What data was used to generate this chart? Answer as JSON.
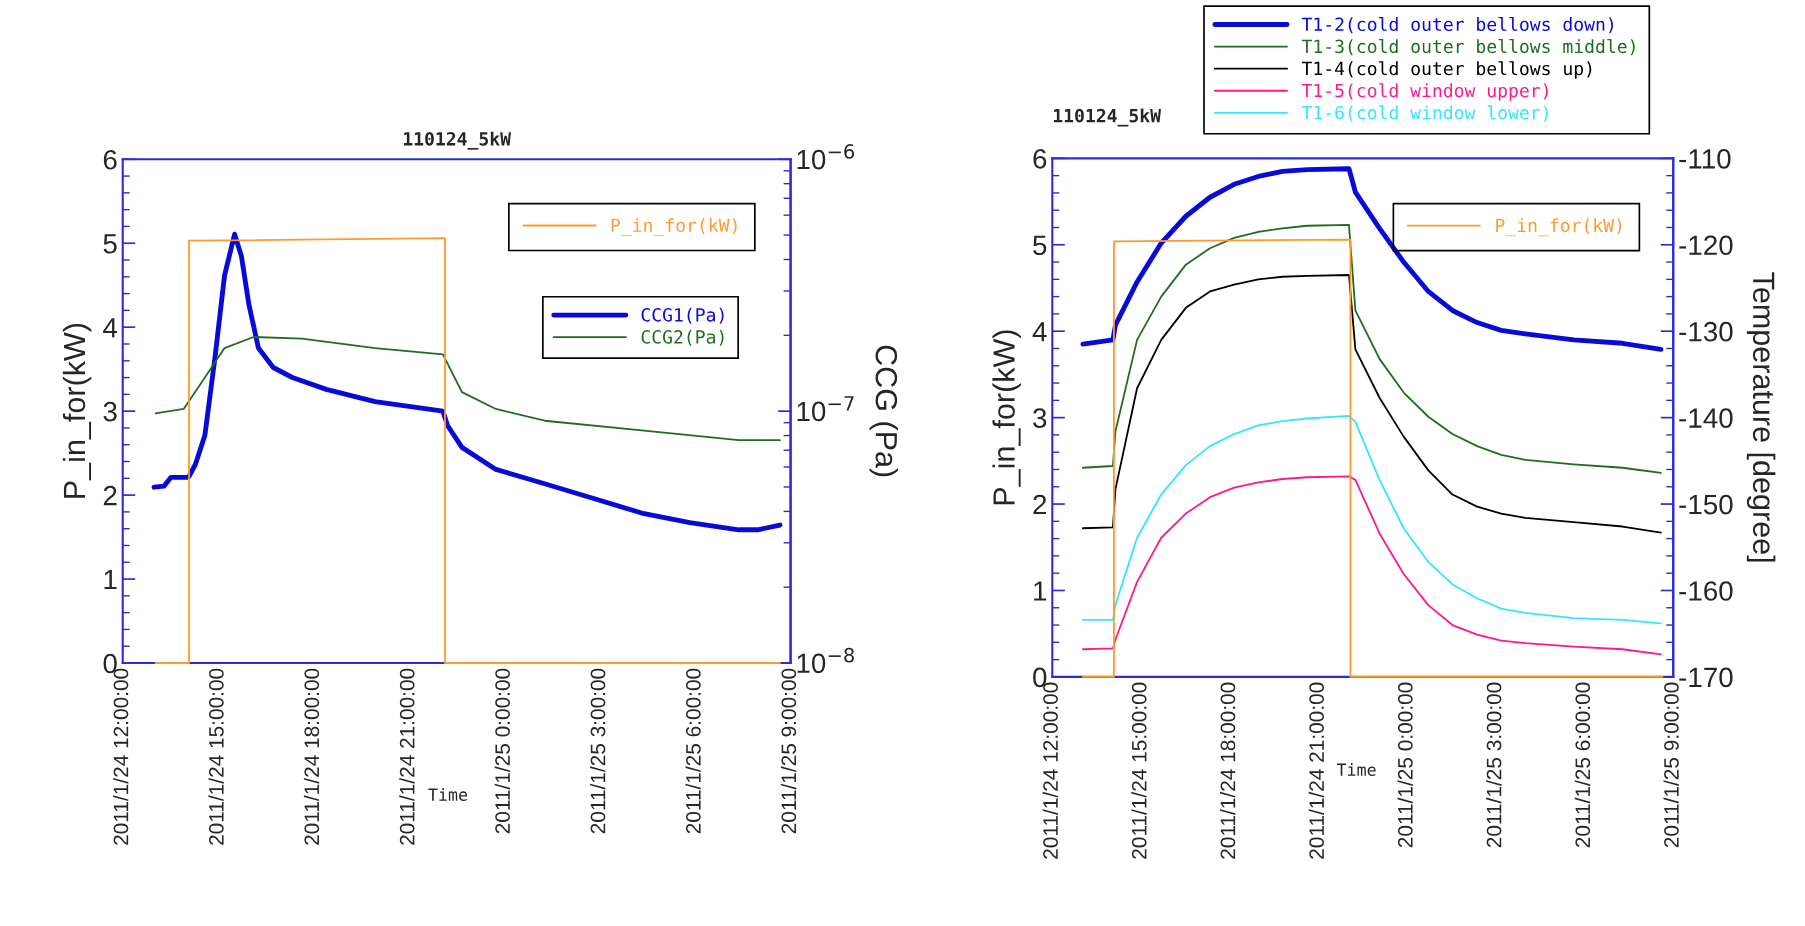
{
  "chart_data": [
    {
      "type": "line",
      "title": "110124_5kW",
      "xlabel": "Time",
      "ylabel": "P_in_for(kW)",
      "y2label": "CCG (Pa)",
      "xlim": [
        "2011-01-24T12:00",
        "2011-01-25T09:00"
      ],
      "xticks": [
        {
          "value": "2011-01-24T12:00",
          "label": "2011/1/24 12:00:00"
        },
        {
          "value": "2011-01-24T15:00",
          "label": "2011/1/24 15:00:00"
        },
        {
          "value": "2011-01-24T18:00",
          "label": "2011/1/24 18:00:00"
        },
        {
          "value": "2011-01-24T21:00",
          "label": "2011/1/24 21:00:00"
        },
        {
          "value": "2011-01-25T00:00",
          "label": "2011/1/25 0:00:00"
        },
        {
          "value": "2011-01-25T03:00",
          "label": "2011/1/25 3:00:00"
        },
        {
          "value": "2011-01-25T06:00",
          "label": "2011/1/25 6:00:00"
        },
        {
          "value": "2011-01-25T09:00",
          "label": "2011/1/25 9:00:00"
        }
      ],
      "ylim": [
        0,
        6
      ],
      "yticks": [
        0,
        1,
        2,
        3,
        4,
        5,
        6
      ],
      "y2lim": [
        1e-08,
        1e-06
      ],
      "y2ticks": [
        {
          "value": 1e-08,
          "label": "10$^{−8}$"
        },
        {
          "value": 1e-07,
          "label": "10$^{−7}$"
        },
        {
          "value": 1e-06,
          "label": "10$^{−6}$"
        }
      ],
      "log": "y2",
      "legend": "top right",
      "series": [
        {
          "name": "P_in_for(kW)",
          "color": "#ff9a2e",
          "x": [
            "2011-01-24T13:02",
            "2011-01-24T14:05",
            "2011-01-24T14:05",
            "2011-01-24T22:08",
            "2011-01-24T22:08",
            "2011-01-25T08:40"
          ],
          "values": [
            0,
            0,
            5.03,
            5.06,
            0,
            0
          ]
        },
        {
          "name": "CCG1(Pa)",
          "color": "#0a0ad8",
          "axis": "y2",
          "x": [
            "2011-01-24T12:59",
            "2011-01-24T13:18",
            "2011-01-24T13:31",
            "2011-01-24T14:04",
            "2011-01-24T14:17",
            "2011-01-24T14:35",
            "2011-01-24T14:54",
            "2011-01-24T15:12",
            "2011-01-24T15:31",
            "2011-01-24T15:44",
            "2011-01-24T15:58",
            "2011-01-24T16:16",
            "2011-01-24T16:44",
            "2011-01-24T17:20",
            "2011-01-24T18:24",
            "2011-01-24T19:56",
            "2011-01-24T22:04",
            "2011-01-24T22:13",
            "2011-01-24T22:40",
            "2011-01-24T23:44",
            "2011-01-25T01:16",
            "2011-01-25T02:47",
            "2011-01-25T04:19",
            "2011-01-25T05:50",
            "2011-01-25T07:22",
            "2011-01-25T07:58",
            "2011-01-25T08:40"
          ],
          "values": [
            4.99e-08,
            5.04e-08,
            5.46e-08,
            5.46e-08,
            6.14e-08,
            8.02e-08,
            1.63e-07,
            3.45e-07,
            5.04e-07,
            4.12e-07,
            2.65e-07,
            1.78e-07,
            1.49e-07,
            1.36e-07,
            1.22e-07,
            1.09e-07,
            1e-07,
            8.75e-08,
            7.18e-08,
            5.87e-08,
            5.15e-08,
            4.51e-08,
            3.94e-08,
            3.61e-08,
            3.38e-08,
            3.38e-08,
            3.53e-08
          ]
        },
        {
          "name": "CCG2(Pa)",
          "color": "#1f6e1f",
          "axis": "y2",
          "x": [
            "2011-01-24T13:02",
            "2011-01-24T13:55",
            "2011-01-24T14:35",
            "2011-01-24T15:12",
            "2011-01-24T16:07",
            "2011-01-24T17:38",
            "2011-01-24T19:56",
            "2011-01-24T22:04",
            "2011-01-24T22:40",
            "2011-01-24T23:44",
            "2011-01-25T01:16",
            "2011-01-25T04:19",
            "2011-01-25T07:22",
            "2011-01-25T08:40"
          ],
          "values": [
            9.8e-08,
            1.02e-07,
            1.36e-07,
            1.78e-07,
            1.97e-07,
            1.94e-07,
            1.78e-07,
            1.68e-07,
            1.19e-07,
            1.02e-07,
            9.16e-08,
            8.38e-08,
            7.67e-08,
            7.67e-08
          ]
        }
      ]
    },
    {
      "type": "line",
      "title": "110124_5kW",
      "xlabel": "Time",
      "ylabel": "P_in_for(kW)",
      "y2label": "Temperature [degree]",
      "xlim": [
        "2011-01-24T12:00",
        "2011-01-25T09:00"
      ],
      "xticks": [
        {
          "value": "2011-01-24T12:00",
          "label": "2011/1/24 12:00:00"
        },
        {
          "value": "2011-01-24T15:00",
          "label": "2011/1/24 15:00:00"
        },
        {
          "value": "2011-01-24T18:00",
          "label": "2011/1/24 18:00:00"
        },
        {
          "value": "2011-01-24T21:00",
          "label": "2011/1/24 21:00:00"
        },
        {
          "value": "2011-01-25T00:00",
          "label": "2011/1/25 0:00:00"
        },
        {
          "value": "2011-01-25T03:00",
          "label": "2011/1/25 3:00:00"
        },
        {
          "value": "2011-01-25T06:00",
          "label": "2011/1/25 6:00:00"
        },
        {
          "value": "2011-01-25T09:00",
          "label": "2011/1/25 9:00:00"
        }
      ],
      "ylim": [
        0,
        6
      ],
      "yticks": [
        0,
        1,
        2,
        3,
        4,
        5,
        6
      ],
      "y2lim": [
        -170,
        -110
      ],
      "y2ticks": [
        -170,
        -160,
        -150,
        -140,
        -130,
        -120,
        -110
      ],
      "legend": "top",
      "x": [
        "2011-01-24T13:02",
        "2011-01-24T14:03",
        "2011-01-24T14:08",
        "2011-01-24T14:52",
        "2011-01-24T15:41",
        "2011-01-24T16:31",
        "2011-01-24T17:20",
        "2011-01-24T18:09",
        "2011-01-24T18:58",
        "2011-01-24T19:47",
        "2011-01-24T20:37",
        "2011-01-24T22:02",
        "2011-01-24T22:15",
        "2011-01-24T23:04",
        "2011-01-24T23:53",
        "2011-01-25T00:43",
        "2011-01-25T01:32",
        "2011-01-25T02:22",
        "2011-01-25T03:11",
        "2011-01-25T04:00",
        "2011-01-25T05:38",
        "2011-01-25T07:17",
        "2011-01-25T08:35"
      ],
      "series": [
        {
          "name": "T1-2(cold outer bellows down)",
          "color": "#0a0ad8",
          "axis": "y2",
          "values": [
            -131.5,
            -131.0,
            -129.3,
            -124.3,
            -119.8,
            -116.7,
            -114.5,
            -113.0,
            -112.1,
            -111.5,
            -111.3,
            -111.2,
            -113.9,
            -118.1,
            -122.0,
            -125.4,
            -127.6,
            -129.0,
            -129.9,
            -130.3,
            -131.0,
            -131.4,
            -132.1
          ]
        },
        {
          "name": "T1-3(cold outer bellows middle)",
          "color": "#1f6e1f",
          "axis": "y2",
          "values": [
            -145.8,
            -145.6,
            -141.6,
            -131.0,
            -126.0,
            -122.3,
            -120.4,
            -119.2,
            -118.5,
            -118.1,
            -117.8,
            -117.7,
            -127.6,
            -133.2,
            -137.1,
            -139.9,
            -141.9,
            -143.3,
            -144.3,
            -144.9,
            -145.4,
            -145.8,
            -146.4
          ]
        },
        {
          "name": "T1-4(cold outer bellows up)",
          "color": "#000000",
          "axis": "y2",
          "values": [
            -152.8,
            -152.7,
            -148.3,
            -136.6,
            -131.0,
            -127.3,
            -125.4,
            -124.6,
            -124.0,
            -123.7,
            -123.6,
            -123.5,
            -132.1,
            -137.7,
            -142.2,
            -146.1,
            -148.9,
            -150.3,
            -151.1,
            -151.6,
            -152.1,
            -152.6,
            -153.3
          ]
        },
        {
          "name": "T1-5(cold window upper)",
          "color": "#ff1a8c",
          "axis": "y2",
          "values": [
            -166.8,
            -166.7,
            -165.7,
            -159.0,
            -153.9,
            -151.1,
            -149.2,
            -148.1,
            -147.5,
            -147.1,
            -146.9,
            -146.8,
            -147.2,
            -153.4,
            -158.1,
            -161.7,
            -164.0,
            -165.1,
            -165.8,
            -166.1,
            -166.5,
            -166.8,
            -167.4
          ]
        },
        {
          "name": "T1-6(cold window lower)",
          "color": "#33e6ff",
          "axis": "y2",
          "values": [
            -163.4,
            -163.4,
            -161.7,
            -153.9,
            -148.9,
            -145.5,
            -143.3,
            -141.9,
            -140.9,
            -140.4,
            -140.1,
            -139.8,
            -140.5,
            -147.2,
            -152.8,
            -156.7,
            -159.3,
            -160.9,
            -162.1,
            -162.6,
            -163.2,
            -163.4,
            -163.8
          ]
        },
        {
          "name": "P_in_for(kW)",
          "color": "#ff9a2e",
          "x": [
            "2011-01-24T13:02",
            "2011-01-24T14:05",
            "2011-01-24T14:05",
            "2011-01-24T22:05",
            "2011-01-24T22:05",
            "2011-01-25T08:38"
          ],
          "values": [
            0,
            0,
            5.04,
            5.06,
            0,
            0
          ]
        }
      ]
    }
  ]
}
